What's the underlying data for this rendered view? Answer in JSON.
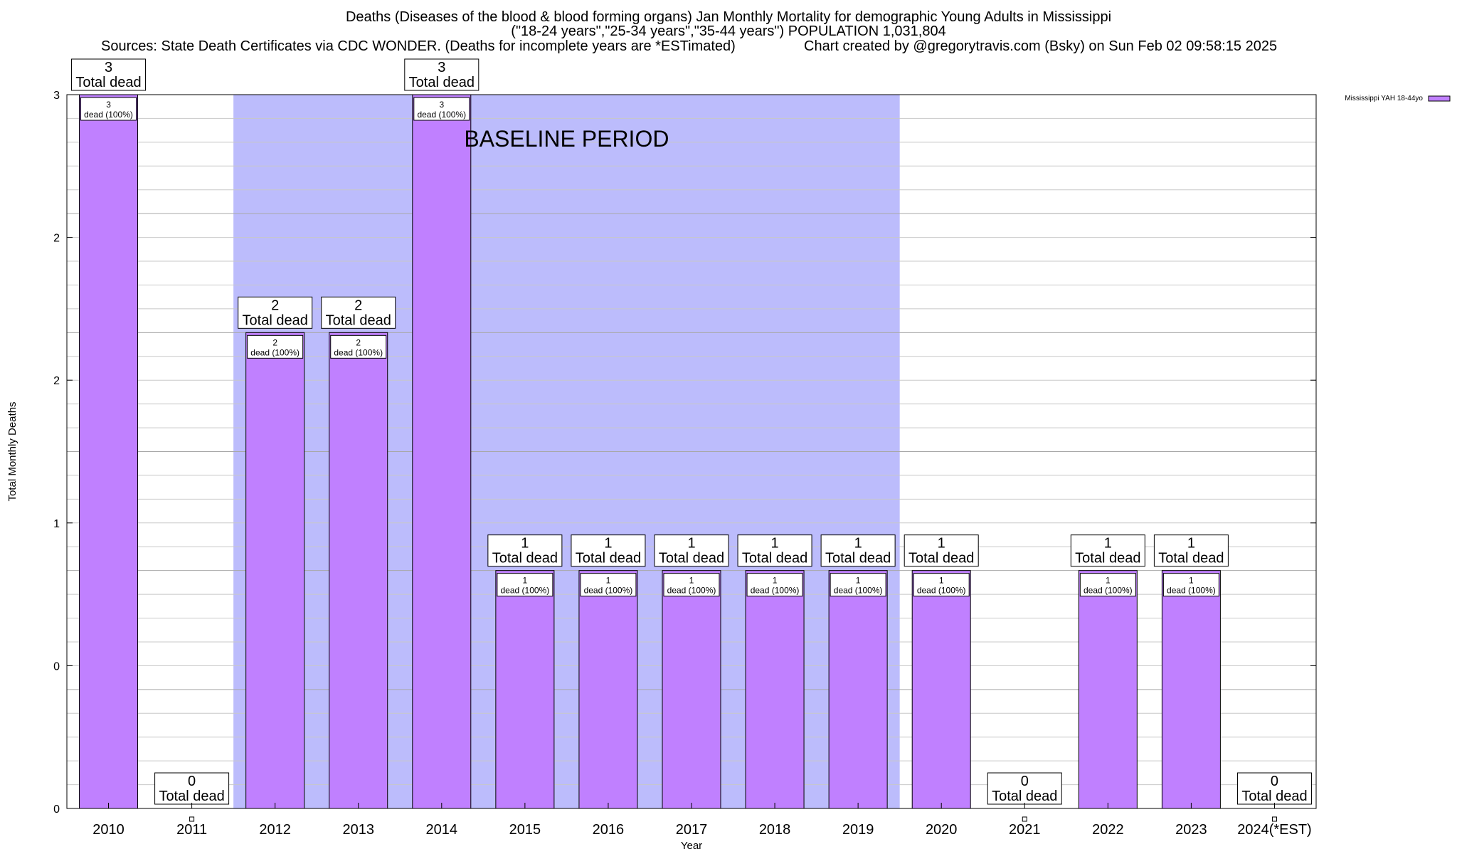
{
  "title": {
    "line1": "Deaths (Diseases of the blood & blood forming organs) Jan Monthly Mortality for demographic Young Adults in Mississippi",
    "line2": "(\"18-24 years\",\"25-34 years\",\"35-44 years\") POPULATION 1,031,804",
    "sources": "Sources: State Death Certificates via CDC WONDER. (Deaths for incomplete years are *ESTimated)",
    "credit": "Chart created by @gregorytravis.com (Bsky) on Sun Feb 02 09:58:15 2025"
  },
  "chart_data": {
    "type": "bar",
    "xlabel": "Year",
    "ylabel": "Total Monthly Deaths",
    "ylim": [
      0,
      3
    ],
    "y_tick_labels": [
      "0",
      "0",
      "1",
      "2",
      "2",
      "3"
    ],
    "categories": [
      "2010",
      "2011",
      "2012",
      "2013",
      "2014",
      "2015",
      "2016",
      "2017",
      "2018",
      "2019",
      "2020",
      "2021",
      "2022",
      "2023",
      "2024(*EST)"
    ],
    "series": [
      {
        "name": "Mississippi YAH 18-44yo",
        "values": [
          3,
          0,
          2,
          2,
          3,
          1,
          1,
          1,
          1,
          1,
          1,
          0,
          1,
          1,
          0
        ]
      }
    ],
    "total_label_suffix": "Total dead",
    "inner_label_suffix": "dead (100%)",
    "baseline_period": {
      "label": "BASELINE PERIOD",
      "from": "2012",
      "to": "2019"
    },
    "grid": true,
    "legend_position": "top-right",
    "colors": {
      "bar": "#c080ff",
      "baseline": "#bcbcfc",
      "grid": "#c8c8c8"
    }
  }
}
